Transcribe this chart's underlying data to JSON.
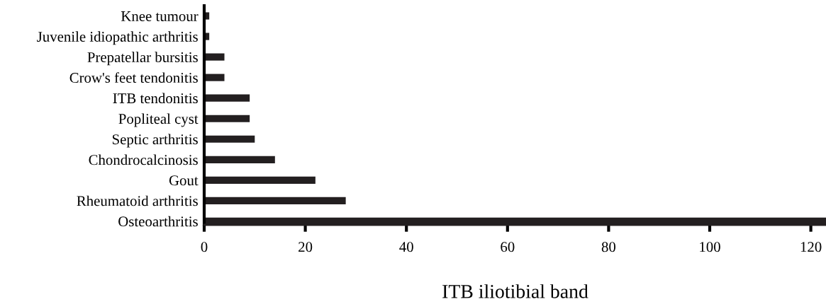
{
  "chart_data": {
    "type": "bar",
    "orientation": "horizontal",
    "xlabel": "ITB iliotibial band",
    "categories": [
      "Knee tumour",
      "Juvenile idiopathic arthritis",
      "Prepatellar bursitis",
      "Crow's feet tendonitis",
      "ITB tendonitis",
      "Popliteal cyst",
      "Septic arthritis",
      "Chondrocalcinosis",
      "Gout",
      "Rheumatoid arthritis",
      "Osteoarthritis"
    ],
    "values": [
      1,
      1,
      4,
      4,
      9,
      9,
      10,
      14,
      22,
      28,
      123
    ],
    "color": "#231f20",
    "xlim": [
      0,
      123
    ],
    "xticks": [
      0,
      20,
      40,
      60,
      80,
      100,
      120
    ],
    "grid": false,
    "legend": false
  }
}
